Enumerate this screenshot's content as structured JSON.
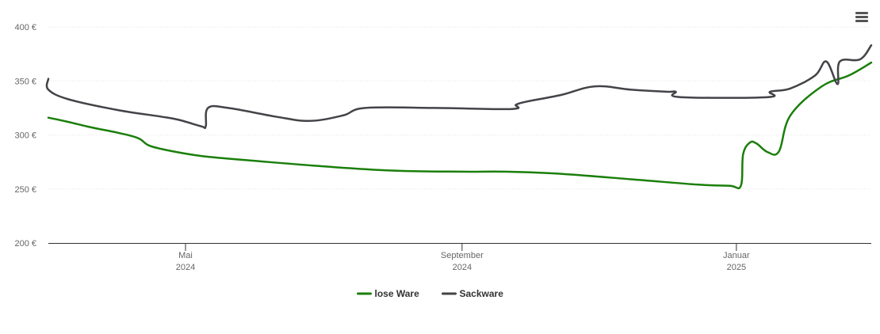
{
  "chart_data": {
    "type": "line",
    "title": "",
    "xlabel": "",
    "ylabel": "",
    "ylim": [
      200,
      400
    ],
    "y_ticks": [
      200,
      250,
      300,
      350,
      400
    ],
    "y_tick_suffix": " €",
    "x_range": [
      "2024-03-01",
      "2025-03-02"
    ],
    "x_ticks": [
      {
        "date": "2024-05-01",
        "line1": "Mai",
        "line2": "2024"
      },
      {
        "date": "2024-09-01",
        "line1": "September",
        "line2": "2024"
      },
      {
        "date": "2025-01-01",
        "line1": "Januar",
        "line2": "2025"
      }
    ],
    "grid": true,
    "legend_position": "bottom-center",
    "series": [
      {
        "name": "lose Ware",
        "color": "#1a7f0a",
        "points": [
          [
            "2024-03-01",
            316
          ],
          [
            "2024-03-10",
            312
          ],
          [
            "2024-03-20",
            307
          ],
          [
            "2024-04-01",
            302
          ],
          [
            "2024-04-10",
            297
          ],
          [
            "2024-04-15",
            290
          ],
          [
            "2024-04-25",
            285
          ],
          [
            "2024-05-10",
            280
          ],
          [
            "2024-06-01",
            276
          ],
          [
            "2024-07-01",
            271
          ],
          [
            "2024-08-01",
            267
          ],
          [
            "2024-09-01",
            266
          ],
          [
            "2024-09-20",
            266
          ],
          [
            "2024-10-15",
            264
          ],
          [
            "2024-11-15",
            259
          ],
          [
            "2024-12-15",
            254
          ],
          [
            "2024-12-29",
            253
          ],
          [
            "2025-01-03",
            253
          ],
          [
            "2025-01-04",
            282
          ],
          [
            "2025-01-07",
            293
          ],
          [
            "2025-01-10",
            292
          ],
          [
            "2025-01-15",
            284
          ],
          [
            "2025-01-20",
            285
          ],
          [
            "2025-01-25",
            318
          ],
          [
            "2025-02-08",
            345
          ],
          [
            "2025-02-20",
            355
          ],
          [
            "2025-03-02",
            367
          ]
        ]
      },
      {
        "name": "Sackware",
        "color": "#434348",
        "points": [
          [
            "2024-03-01",
            352
          ],
          [
            "2024-03-01",
            342
          ],
          [
            "2024-03-10",
            333
          ],
          [
            "2024-04-01",
            323
          ],
          [
            "2024-04-20",
            317
          ],
          [
            "2024-04-28",
            314
          ],
          [
            "2024-05-08",
            308
          ],
          [
            "2024-05-10",
            308
          ],
          [
            "2024-05-11",
            325
          ],
          [
            "2024-05-20",
            325
          ],
          [
            "2024-06-10",
            317
          ],
          [
            "2024-06-25",
            313
          ],
          [
            "2024-07-10",
            318
          ],
          [
            "2024-07-20",
            325
          ],
          [
            "2024-08-20",
            325
          ],
          [
            "2024-09-23",
            324
          ],
          [
            "2024-09-25",
            328
          ],
          [
            "2024-09-30",
            331
          ],
          [
            "2024-10-15",
            337
          ],
          [
            "2024-10-30",
            345
          ],
          [
            "2024-11-15",
            342
          ],
          [
            "2024-12-01",
            340
          ],
          [
            "2024-12-05",
            340
          ],
          [
            "2024-12-07",
            335
          ],
          [
            "2025-01-15",
            335
          ],
          [
            "2025-01-16",
            340
          ],
          [
            "2025-01-25",
            343
          ],
          [
            "2025-02-05",
            355
          ],
          [
            "2025-02-10",
            368
          ],
          [
            "2025-02-15",
            347
          ],
          [
            "2025-02-16",
            368
          ],
          [
            "2025-02-25",
            370
          ],
          [
            "2025-03-02",
            383
          ]
        ]
      }
    ]
  }
}
